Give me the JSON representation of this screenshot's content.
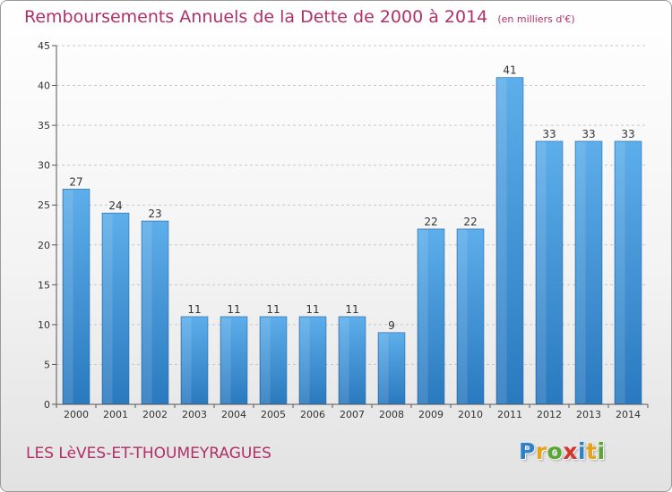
{
  "title": "Remboursements Annuels de la Dette de 2000 à 2014",
  "unit": "(en milliers d'€)",
  "place": "LES LèVES-ET-THOUMEYRAGUES",
  "logo": {
    "letters": [
      "P",
      "r",
      "o",
      "x",
      "i",
      "t",
      "i"
    ],
    "colors": [
      "#2b82c9",
      "#e8a21a",
      "#56a92e",
      "#d5332c",
      "#2b82c9",
      "#e8a21a",
      "#56a92e"
    ]
  },
  "colors": {
    "bar_light": "#5daeea",
    "bar_dark": "#2a79bf",
    "axis": "#555555",
    "grid": "#c8c8c8",
    "title": "#b03067"
  },
  "chart_data": {
    "type": "bar",
    "title": "Remboursements Annuels de la Dette de 2000 à 2014",
    "xlabel": "",
    "ylabel": "en milliers d'€",
    "categories": [
      "2000",
      "2001",
      "2002",
      "2003",
      "2004",
      "2005",
      "2006",
      "2007",
      "2008",
      "2009",
      "2010",
      "2011",
      "2012",
      "2013",
      "2014"
    ],
    "values": [
      27,
      24,
      23,
      11,
      11,
      11,
      11,
      11,
      9,
      22,
      22,
      41,
      33,
      33,
      33
    ],
    "ylim": [
      0,
      45
    ],
    "yticks": [
      0,
      5,
      10,
      15,
      20,
      25,
      30,
      35,
      40,
      45
    ],
    "grid": true
  }
}
